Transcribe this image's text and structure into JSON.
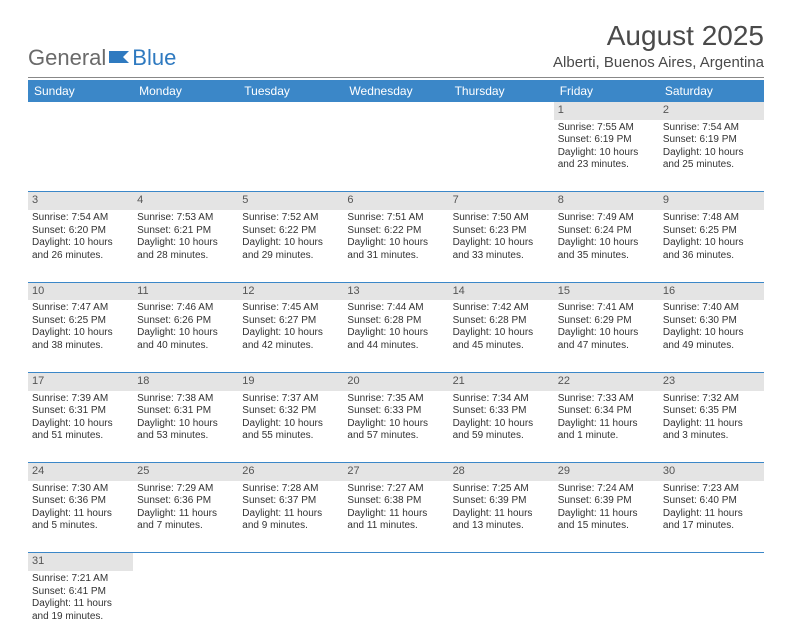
{
  "brand": {
    "part1": "General",
    "part2": "Blue"
  },
  "title": "August 2025",
  "location": "Alberti, Buenos Aires, Argentina",
  "colors": {
    "header_bg": "#3b87c8",
    "header_fg": "#ffffff",
    "daynum_bg": "#e4e4e4",
    "row_border": "#3b87c8"
  },
  "weekdays": [
    "Sunday",
    "Monday",
    "Tuesday",
    "Wednesday",
    "Thursday",
    "Friday",
    "Saturday"
  ],
  "weeks": [
    [
      null,
      null,
      null,
      null,
      null,
      {
        "n": "1",
        "sr": "Sunrise: 7:55 AM",
        "ss": "Sunset: 6:19 PM",
        "d1": "Daylight: 10 hours",
        "d2": "and 23 minutes."
      },
      {
        "n": "2",
        "sr": "Sunrise: 7:54 AM",
        "ss": "Sunset: 6:19 PM",
        "d1": "Daylight: 10 hours",
        "d2": "and 25 minutes."
      }
    ],
    [
      {
        "n": "3",
        "sr": "Sunrise: 7:54 AM",
        "ss": "Sunset: 6:20 PM",
        "d1": "Daylight: 10 hours",
        "d2": "and 26 minutes."
      },
      {
        "n": "4",
        "sr": "Sunrise: 7:53 AM",
        "ss": "Sunset: 6:21 PM",
        "d1": "Daylight: 10 hours",
        "d2": "and 28 minutes."
      },
      {
        "n": "5",
        "sr": "Sunrise: 7:52 AM",
        "ss": "Sunset: 6:22 PM",
        "d1": "Daylight: 10 hours",
        "d2": "and 29 minutes."
      },
      {
        "n": "6",
        "sr": "Sunrise: 7:51 AM",
        "ss": "Sunset: 6:22 PM",
        "d1": "Daylight: 10 hours",
        "d2": "and 31 minutes."
      },
      {
        "n": "7",
        "sr": "Sunrise: 7:50 AM",
        "ss": "Sunset: 6:23 PM",
        "d1": "Daylight: 10 hours",
        "d2": "and 33 minutes."
      },
      {
        "n": "8",
        "sr": "Sunrise: 7:49 AM",
        "ss": "Sunset: 6:24 PM",
        "d1": "Daylight: 10 hours",
        "d2": "and 35 minutes."
      },
      {
        "n": "9",
        "sr": "Sunrise: 7:48 AM",
        "ss": "Sunset: 6:25 PM",
        "d1": "Daylight: 10 hours",
        "d2": "and 36 minutes."
      }
    ],
    [
      {
        "n": "10",
        "sr": "Sunrise: 7:47 AM",
        "ss": "Sunset: 6:25 PM",
        "d1": "Daylight: 10 hours",
        "d2": "and 38 minutes."
      },
      {
        "n": "11",
        "sr": "Sunrise: 7:46 AM",
        "ss": "Sunset: 6:26 PM",
        "d1": "Daylight: 10 hours",
        "d2": "and 40 minutes."
      },
      {
        "n": "12",
        "sr": "Sunrise: 7:45 AM",
        "ss": "Sunset: 6:27 PM",
        "d1": "Daylight: 10 hours",
        "d2": "and 42 minutes."
      },
      {
        "n": "13",
        "sr": "Sunrise: 7:44 AM",
        "ss": "Sunset: 6:28 PM",
        "d1": "Daylight: 10 hours",
        "d2": "and 44 minutes."
      },
      {
        "n": "14",
        "sr": "Sunrise: 7:42 AM",
        "ss": "Sunset: 6:28 PM",
        "d1": "Daylight: 10 hours",
        "d2": "and 45 minutes."
      },
      {
        "n": "15",
        "sr": "Sunrise: 7:41 AM",
        "ss": "Sunset: 6:29 PM",
        "d1": "Daylight: 10 hours",
        "d2": "and 47 minutes."
      },
      {
        "n": "16",
        "sr": "Sunrise: 7:40 AM",
        "ss": "Sunset: 6:30 PM",
        "d1": "Daylight: 10 hours",
        "d2": "and 49 minutes."
      }
    ],
    [
      {
        "n": "17",
        "sr": "Sunrise: 7:39 AM",
        "ss": "Sunset: 6:31 PM",
        "d1": "Daylight: 10 hours",
        "d2": "and 51 minutes."
      },
      {
        "n": "18",
        "sr": "Sunrise: 7:38 AM",
        "ss": "Sunset: 6:31 PM",
        "d1": "Daylight: 10 hours",
        "d2": "and 53 minutes."
      },
      {
        "n": "19",
        "sr": "Sunrise: 7:37 AM",
        "ss": "Sunset: 6:32 PM",
        "d1": "Daylight: 10 hours",
        "d2": "and 55 minutes."
      },
      {
        "n": "20",
        "sr": "Sunrise: 7:35 AM",
        "ss": "Sunset: 6:33 PM",
        "d1": "Daylight: 10 hours",
        "d2": "and 57 minutes."
      },
      {
        "n": "21",
        "sr": "Sunrise: 7:34 AM",
        "ss": "Sunset: 6:33 PM",
        "d1": "Daylight: 10 hours",
        "d2": "and 59 minutes."
      },
      {
        "n": "22",
        "sr": "Sunrise: 7:33 AM",
        "ss": "Sunset: 6:34 PM",
        "d1": "Daylight: 11 hours",
        "d2": "and 1 minute."
      },
      {
        "n": "23",
        "sr": "Sunrise: 7:32 AM",
        "ss": "Sunset: 6:35 PM",
        "d1": "Daylight: 11 hours",
        "d2": "and 3 minutes."
      }
    ],
    [
      {
        "n": "24",
        "sr": "Sunrise: 7:30 AM",
        "ss": "Sunset: 6:36 PM",
        "d1": "Daylight: 11 hours",
        "d2": "and 5 minutes."
      },
      {
        "n": "25",
        "sr": "Sunrise: 7:29 AM",
        "ss": "Sunset: 6:36 PM",
        "d1": "Daylight: 11 hours",
        "d2": "and 7 minutes."
      },
      {
        "n": "26",
        "sr": "Sunrise: 7:28 AM",
        "ss": "Sunset: 6:37 PM",
        "d1": "Daylight: 11 hours",
        "d2": "and 9 minutes."
      },
      {
        "n": "27",
        "sr": "Sunrise: 7:27 AM",
        "ss": "Sunset: 6:38 PM",
        "d1": "Daylight: 11 hours",
        "d2": "and 11 minutes."
      },
      {
        "n": "28",
        "sr": "Sunrise: 7:25 AM",
        "ss": "Sunset: 6:39 PM",
        "d1": "Daylight: 11 hours",
        "d2": "and 13 minutes."
      },
      {
        "n": "29",
        "sr": "Sunrise: 7:24 AM",
        "ss": "Sunset: 6:39 PM",
        "d1": "Daylight: 11 hours",
        "d2": "and 15 minutes."
      },
      {
        "n": "30",
        "sr": "Sunrise: 7:23 AM",
        "ss": "Sunset: 6:40 PM",
        "d1": "Daylight: 11 hours",
        "d2": "and 17 minutes."
      }
    ],
    [
      {
        "n": "31",
        "sr": "Sunrise: 7:21 AM",
        "ss": "Sunset: 6:41 PM",
        "d1": "Daylight: 11 hours",
        "d2": "and 19 minutes."
      },
      null,
      null,
      null,
      null,
      null,
      null
    ]
  ]
}
